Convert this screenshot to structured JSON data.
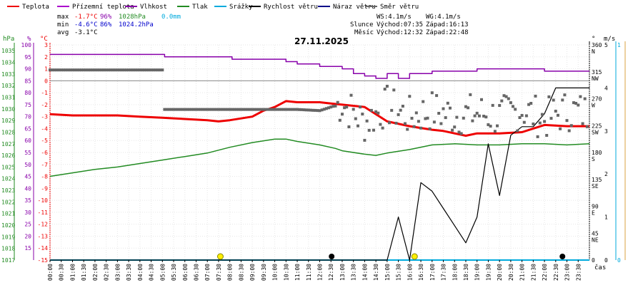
{
  "chart_data": {
    "type": "line",
    "title": "27.11.2025",
    "xlabel": "čas",
    "legend": [
      {
        "label": "Teplota",
        "color": "#ee0000"
      },
      {
        "label": "Přízemní teplota",
        "color": "#aa00cc"
      },
      {
        "label": "Vlhkost",
        "color": "#8800aa"
      },
      {
        "label": "Tlak",
        "color": "#228b22"
      },
      {
        "label": "Srážky",
        "color": "#00aadd"
      },
      {
        "label": "Rychlost větru",
        "color": "#000000"
      },
      {
        "label": "Náraz větru",
        "color": "#000088"
      },
      {
        "label": "Směr větru",
        "color": "#666666"
      }
    ],
    "stats": {
      "max": {
        "label": "max",
        "temp": "-1.7°C",
        "hum": "96%",
        "pres": "1028hPa",
        "rain": "0.0mm"
      },
      "min": {
        "label": "min",
        "temp": "-4.6°C",
        "hum": "86%",
        "pres": "1024.2hPa"
      },
      "avg": {
        "label": "avg",
        "temp": "-3.1°C"
      }
    },
    "sun_info": {
      "ws": "WS:4.1m/s",
      "wg": "WG:4.1m/s",
      "sun_label": "Slunce",
      "sunrise": "Východ:07:35",
      "sunset": "Západ:16:13",
      "moon_label": "Měsíc",
      "moonrise": "Východ:12:32",
      "moonset": "Západ:22:48"
    },
    "axis_units": {
      "pressure": "hPa",
      "humidity": "%",
      "temperature": "°C",
      "direction": "°",
      "speed": "m/s"
    },
    "pressure_ticks": [
      1035,
      1034,
      1033,
      1032,
      1031,
      1030,
      1029,
      1028,
      1027,
      1026,
      1025,
      1024,
      1023,
      1022,
      1021,
      1020,
      1019,
      1018,
      1017
    ],
    "humidity_ticks": [
      100,
      95,
      90,
      85,
      80,
      75,
      70,
      65,
      60,
      55,
      50,
      45,
      40,
      35,
      30,
      25,
      20,
      15
    ],
    "temp_ticks": [
      3,
      2,
      1,
      0,
      -1,
      -2,
      -3,
      -4,
      -5,
      -6,
      -7,
      -8,
      -9,
      -10,
      -11,
      -12,
      -13,
      -14,
      -15
    ],
    "direction_ticks": [
      {
        "deg": 360,
        "name": "N"
      },
      {
        "deg": 315,
        "name": "NW"
      },
      {
        "deg": 270,
        "name": "W"
      },
      {
        "deg": 225,
        "name": "SW"
      },
      {
        "deg": 180,
        "name": "S"
      },
      {
        "deg": 135,
        "name": "SE"
      },
      {
        "deg": 90,
        "name": "E"
      },
      {
        "deg": 45,
        "name": "NE"
      },
      {
        "deg": 0,
        "name": ""
      }
    ],
    "speed_ticks": [
      5,
      4,
      3,
      2,
      1,
      0
    ],
    "time_ticks": [
      "00:00",
      "00:30",
      "01:00",
      "01:30",
      "02:00",
      "02:30",
      "03:00",
      "03:30",
      "04:00",
      "04:30",
      "05:00",
      "05:30",
      "06:00",
      "06:30",
      "07:00",
      "07:30",
      "08:00",
      "08:30",
      "09:00",
      "09:30",
      "10:00",
      "10:30",
      "11:00",
      "11:30",
      "12:00",
      "12:30",
      "13:00",
      "13:30",
      "14:00",
      "14:30",
      "15:00",
      "15:30",
      "16:00",
      "16:30",
      "17:00",
      "17:30",
      "18:00",
      "18:30",
      "19:00",
      "19:30",
      "20:00",
      "20:30",
      "21:00",
      "21:30",
      "22:00",
      "22:30",
      "23:00",
      "23:30"
    ],
    "series": {
      "temperature_c": [
        [
          0,
          -2.8
        ],
        [
          1,
          -2.9
        ],
        [
          2,
          -2.9
        ],
        [
          3,
          -2.9
        ],
        [
          4,
          -3
        ],
        [
          5,
          -3.1
        ],
        [
          6,
          -3.2
        ],
        [
          7,
          -3.3
        ],
        [
          7.5,
          -3.4
        ],
        [
          8,
          -3.3
        ],
        [
          9,
          -3
        ],
        [
          9.5,
          -2.5
        ],
        [
          10,
          -2.2
        ],
        [
          10.5,
          -1.7
        ],
        [
          11,
          -1.8
        ],
        [
          12,
          -1.8
        ],
        [
          12.5,
          -1.9
        ],
        [
          13,
          -2
        ],
        [
          14,
          -2.2
        ],
        [
          14.5,
          -2.8
        ],
        [
          15,
          -3.4
        ],
        [
          16,
          -3.8
        ],
        [
          17,
          -4.1
        ],
        [
          17.5,
          -4.2
        ],
        [
          18,
          -4.4
        ],
        [
          18.5,
          -4.6
        ],
        [
          19,
          -4.4
        ],
        [
          20,
          -4.4
        ],
        [
          21,
          -4.3
        ],
        [
          21.5,
          -4
        ],
        [
          22,
          -3.7
        ],
        [
          23,
          -3.8
        ],
        [
          24,
          -3.8
        ]
      ],
      "humidity_pct": [
        [
          0,
          96
        ],
        [
          5,
          96
        ],
        [
          5.1,
          95
        ],
        [
          8,
          95
        ],
        [
          8.1,
          94
        ],
        [
          10,
          94
        ],
        [
          10.5,
          93
        ],
        [
          11,
          92
        ],
        [
          12,
          91
        ],
        [
          13,
          90
        ],
        [
          13.5,
          88
        ],
        [
          14,
          87
        ],
        [
          14.5,
          86
        ],
        [
          15,
          88
        ],
        [
          15.5,
          86
        ],
        [
          16,
          88
        ],
        [
          17,
          89
        ],
        [
          18,
          89
        ],
        [
          19,
          90
        ],
        [
          20,
          90
        ],
        [
          21,
          90
        ],
        [
          22,
          89
        ],
        [
          23,
          89
        ],
        [
          24,
          89
        ]
      ],
      "pressure_hpa": [
        [
          0,
          1024.2
        ],
        [
          1,
          1024.5
        ],
        [
          2,
          1024.8
        ],
        [
          3,
          1025
        ],
        [
          4,
          1025.3
        ],
        [
          5,
          1025.6
        ],
        [
          6,
          1025.9
        ],
        [
          7,
          1026.2
        ],
        [
          8,
          1026.7
        ],
        [
          9,
          1027.1
        ],
        [
          10,
          1027.4
        ],
        [
          10.5,
          1027.4
        ],
        [
          11,
          1027.2
        ],
        [
          12,
          1026.9
        ],
        [
          12.7,
          1026.6
        ],
        [
          13,
          1026.4
        ],
        [
          14,
          1026.1
        ],
        [
          14.5,
          1026
        ],
        [
          15,
          1026.2
        ],
        [
          16,
          1026.5
        ],
        [
          17,
          1026.9
        ],
        [
          18,
          1027
        ],
        [
          19,
          1026.9
        ],
        [
          20,
          1026.9
        ],
        [
          21,
          1027
        ],
        [
          22,
          1027
        ],
        [
          23,
          1026.9
        ],
        [
          24,
          1027
        ]
      ],
      "wind_speed_ms": [
        [
          0,
          0
        ],
        [
          15,
          0
        ],
        [
          15.5,
          1
        ],
        [
          16,
          0
        ],
        [
          16.5,
          1.8
        ],
        [
          17,
          1.6
        ],
        [
          17.5,
          1.2
        ],
        [
          18,
          0.8
        ],
        [
          18.5,
          0.4
        ],
        [
          19,
          1
        ],
        [
          19.5,
          2.7
        ],
        [
          20,
          1.5
        ],
        [
          20.5,
          2.9
        ],
        [
          21,
          3.1
        ],
        [
          21.5,
          3.1
        ],
        [
          22,
          3.4
        ],
        [
          22.5,
          4
        ],
        [
          23,
          4
        ],
        [
          24,
          4
        ]
      ],
      "rain_mm": [
        [
          0,
          0
        ],
        [
          24,
          0
        ]
      ],
      "wind_dir_deg": [
        [
          0,
          318
        ],
        [
          5,
          318
        ],
        [
          5,
          252
        ],
        [
          11,
          252
        ],
        [
          12,
          250
        ],
        [
          13,
          262
        ],
        [
          14,
          230
        ],
        [
          15,
          258
        ],
        [
          16,
          240
        ],
        [
          17,
          250
        ],
        [
          18,
          242
        ],
        [
          19,
          246
        ],
        [
          20,
          240
        ],
        [
          21,
          252
        ],
        [
          22,
          236
        ],
        [
          23,
          250
        ],
        [
          24,
          246
        ]
      ]
    },
    "events": [
      {
        "type": "sunrise",
        "time": 7.58
      },
      {
        "type": "moonrise",
        "time": 12.53
      },
      {
        "type": "sunset",
        "time": 16.22
      },
      {
        "type": "moonset",
        "time": 22.8
      }
    ]
  }
}
